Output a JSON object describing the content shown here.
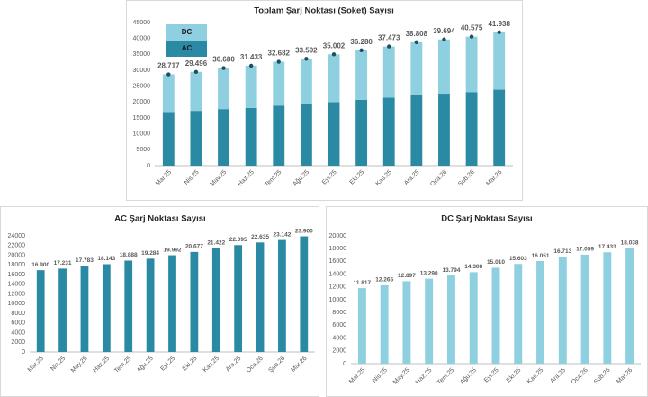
{
  "chart_data": [
    {
      "type": "stacked_bar",
      "title": "Toplam Şarj Noktası (Soket) Sayısı",
      "categories": [
        "Mar.25",
        "Nis.25",
        "May.25",
        "Haz.25",
        "Tem.25",
        "Ağu.25",
        "Eyl.25",
        "Eki.25",
        "Kas.25",
        "Ara.25",
        "Oca.26",
        "Şub.26",
        "Mar.26"
      ],
      "series": [
        {
          "name": "AC",
          "color": "#2b8aa3",
          "values": [
            16900,
            17231,
            17783,
            18143,
            18888,
            19284,
            19992,
            20677,
            21422,
            22095,
            22635,
            23142,
            23900
          ]
        },
        {
          "name": "DC",
          "color": "#8ecfe0",
          "values": [
            11817,
            12265,
            12897,
            13290,
            13794,
            14308,
            15010,
            15603,
            16051,
            16713,
            17059,
            17433,
            18038
          ]
        }
      ],
      "totals": {
        "values": [
          28717,
          29496,
          30680,
          31433,
          32682,
          33592,
          35002,
          36280,
          37473,
          38808,
          39694,
          40575,
          41938
        ],
        "value_labels": [
          "28.717",
          "29.496",
          "30.680",
          "31.433",
          "32.682",
          "33.592",
          "35.002",
          "36.280",
          "37.473",
          "38.808",
          "39.694",
          "40.575",
          "41.938"
        ]
      },
      "ylim": [
        0,
        45000
      ],
      "yticks": [
        0,
        5000,
        10000,
        15000,
        20000,
        25000,
        30000,
        35000,
        40000,
        45000
      ],
      "grid": false
    },
    {
      "type": "bar",
      "title": "AC Şarj Noktası Sayısı",
      "categories": [
        "Mar.25",
        "Nis.25",
        "May.25",
        "Haz.25",
        "Tem.25",
        "Ağu.25",
        "Eyl.25",
        "Eki.25",
        "Kas.25",
        "Ara.25",
        "Oca.26",
        "Şub.26",
        "Mar.26"
      ],
      "values": [
        16900,
        17231,
        17783,
        18143,
        18888,
        19284,
        19992,
        20677,
        21422,
        22095,
        22635,
        23142,
        23900
      ],
      "value_labels": [
        "16.900",
        "17.231",
        "17.783",
        "18.143",
        "18.888",
        "19.284",
        "19.992",
        "20.677",
        "21.422",
        "22.095",
        "22.635",
        "23.142",
        "23.900"
      ],
      "color": "#2b8aa3",
      "ylim": [
        0,
        24000
      ],
      "yticks": [
        0,
        2000,
        4000,
        6000,
        8000,
        10000,
        12000,
        14000,
        16000,
        18000,
        20000,
        22000,
        24000
      ],
      "grid": false
    },
    {
      "type": "bar",
      "title": "DC Şarj Noktası Sayısı",
      "categories": [
        "Mar.25",
        "Nis.25",
        "May.25",
        "Haz.25",
        "Tem.25",
        "Ağu.25",
        "Eyl.25",
        "Eki.25",
        "Kas.25",
        "Ara.25",
        "Oca.26",
        "Şub.26",
        "Mar.26"
      ],
      "values": [
        11817,
        12265,
        12897,
        13290,
        13794,
        14308,
        15010,
        15603,
        16051,
        16713,
        17059,
        17433,
        18038
      ],
      "value_labels": [
        "11.817",
        "12.265",
        "12.897",
        "13.290",
        "13.794",
        "14.308",
        "15.010",
        "15.603",
        "16.051",
        "16.713",
        "17.059",
        "17.433",
        "18.038"
      ],
      "color": "#8ecfe0",
      "ylim": [
        0,
        20000
      ],
      "yticks": [
        0,
        2000,
        4000,
        6000,
        8000,
        10000,
        12000,
        14000,
        16000,
        18000,
        20000
      ],
      "grid": false
    }
  ]
}
